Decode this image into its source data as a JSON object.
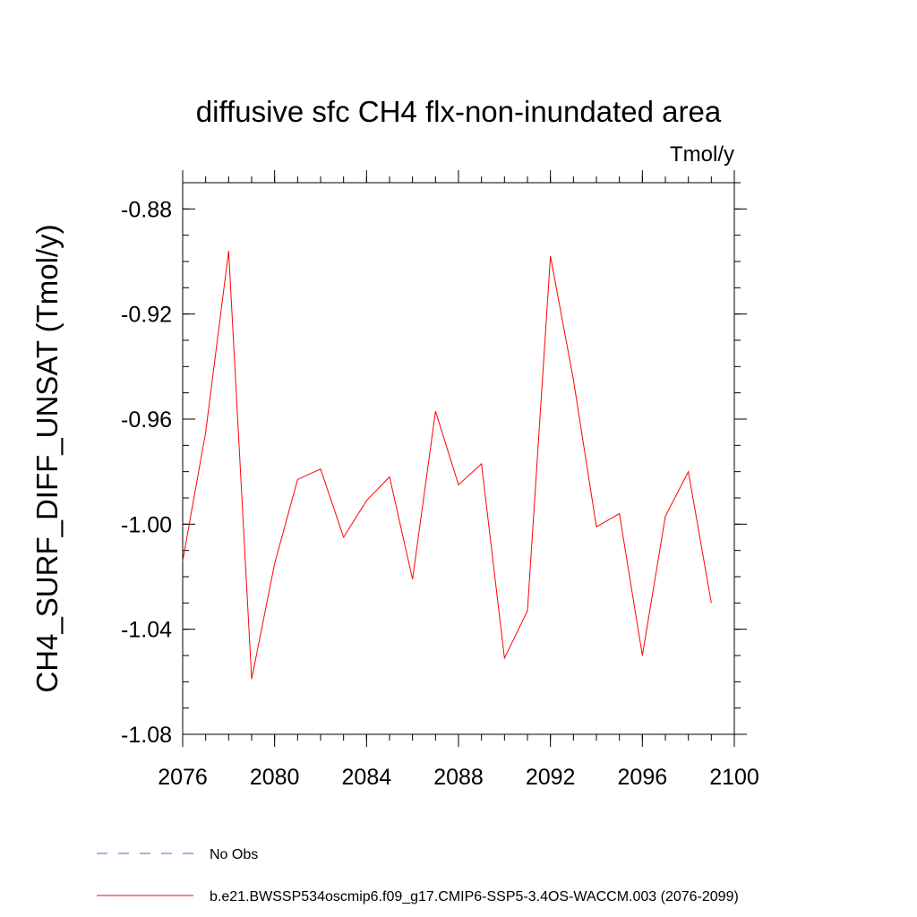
{
  "chart_data": {
    "type": "line",
    "title": "diffusive sfc CH4 flx-non-inundated area",
    "units": "Tmol/y",
    "ylabel": "CH4_SURF_DIFF_UNSAT  (Tmol/y)",
    "xlabel": "",
    "xlim": [
      2076,
      2100
    ],
    "ylim": [
      -1.08,
      -0.87
    ],
    "x_ticks": [
      2076,
      2080,
      2084,
      2088,
      2092,
      2096,
      2100
    ],
    "x_tick_labels": [
      "2076",
      "2080",
      "2084",
      "2088",
      "2092",
      "2096",
      "2100"
    ],
    "y_ticks": [
      -1.08,
      -1.04,
      -1.0,
      -0.96,
      -0.92,
      -0.88
    ],
    "y_tick_labels": [
      "-1.08",
      "-1.04",
      "-1.00",
      "-0.96",
      "-0.92",
      "-0.88"
    ],
    "series": [
      {
        "name": "b.e21.BWSSP534oscmip6.f09_g17.CMIP6-SSP5-3.4OS-WACCM.003 (2076-2099)",
        "color": "#ff0000",
        "x": [
          2076,
          2077,
          2078,
          2079,
          2080,
          2081,
          2082,
          2083,
          2084,
          2085,
          2086,
          2087,
          2088,
          2089,
          2090,
          2091,
          2092,
          2093,
          2094,
          2095,
          2096,
          2097,
          2098,
          2099
        ],
        "values": [
          -1.014,
          -0.965,
          -0.896,
          -1.059,
          -1.015,
          -0.983,
          -0.979,
          -1.005,
          -0.991,
          -0.982,
          -1.021,
          -0.957,
          -0.985,
          -0.977,
          -1.051,
          -1.033,
          -0.898,
          -0.945,
          -1.001,
          -0.996,
          -1.05,
          -0.997,
          -0.98,
          -1.03
        ]
      }
    ],
    "legend": [
      {
        "label": "No Obs",
        "style": "dashed",
        "color": "#6a5acd"
      },
      {
        "label": "b.e21.BWSSP534oscmip6.f09_g17.CMIP6-SSP5-3.4OS-WACCM.003 (2076-2099)",
        "style": "solid",
        "color": "#ff0000"
      }
    ]
  }
}
